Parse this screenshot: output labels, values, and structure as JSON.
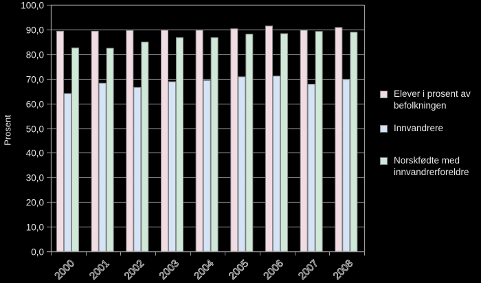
{
  "chart_data": {
    "type": "bar",
    "title": "",
    "xlabel": "",
    "ylabel": "Prosent",
    "ylim": [
      0,
      100
    ],
    "yticks": [
      "0,0",
      "10,0",
      "20,0",
      "30,0",
      "40,0",
      "50,0",
      "60,0",
      "70,0",
      "80,0",
      "90,0",
      "100,0"
    ],
    "grid": true,
    "legend_position": "right",
    "categories": [
      "2000",
      "2001",
      "2002",
      "2003",
      "2004",
      "2005",
      "2006",
      "2007",
      "2008"
    ],
    "series": [
      {
        "name": "Elever i prosent av befolkningen",
        "color": "#f2dce3",
        "values": [
          89.3,
          89.3,
          89.6,
          89.7,
          89.7,
          90.3,
          91.4,
          89.7,
          90.8
        ]
      },
      {
        "name": "Innvandrere",
        "color": "#d5e3f6",
        "values": [
          64.0,
          68.2,
          66.5,
          68.8,
          69.3,
          70.8,
          71.1,
          67.8,
          69.7
        ]
      },
      {
        "name": "Norskfødte med innvandrerforeldre",
        "color": "#cfe8d8",
        "values": [
          82.5,
          82.4,
          84.9,
          86.7,
          86.7,
          88.1,
          88.3,
          89.2,
          88.9
        ]
      }
    ]
  },
  "legend": {
    "items": [
      {
        "label_line1": "Elever i prosent av",
        "label_line2": "befolkningen",
        "color": "#f2dce3"
      },
      {
        "label_line1": "Innvandrere",
        "label_line2": "",
        "color": "#d5e3f6"
      },
      {
        "label_line1": "Norskfødte med",
        "label_line2": "innvandrerforeldre",
        "color": "#cfe8d8"
      }
    ]
  },
  "axis": {
    "ylabel": "Prosent"
  }
}
